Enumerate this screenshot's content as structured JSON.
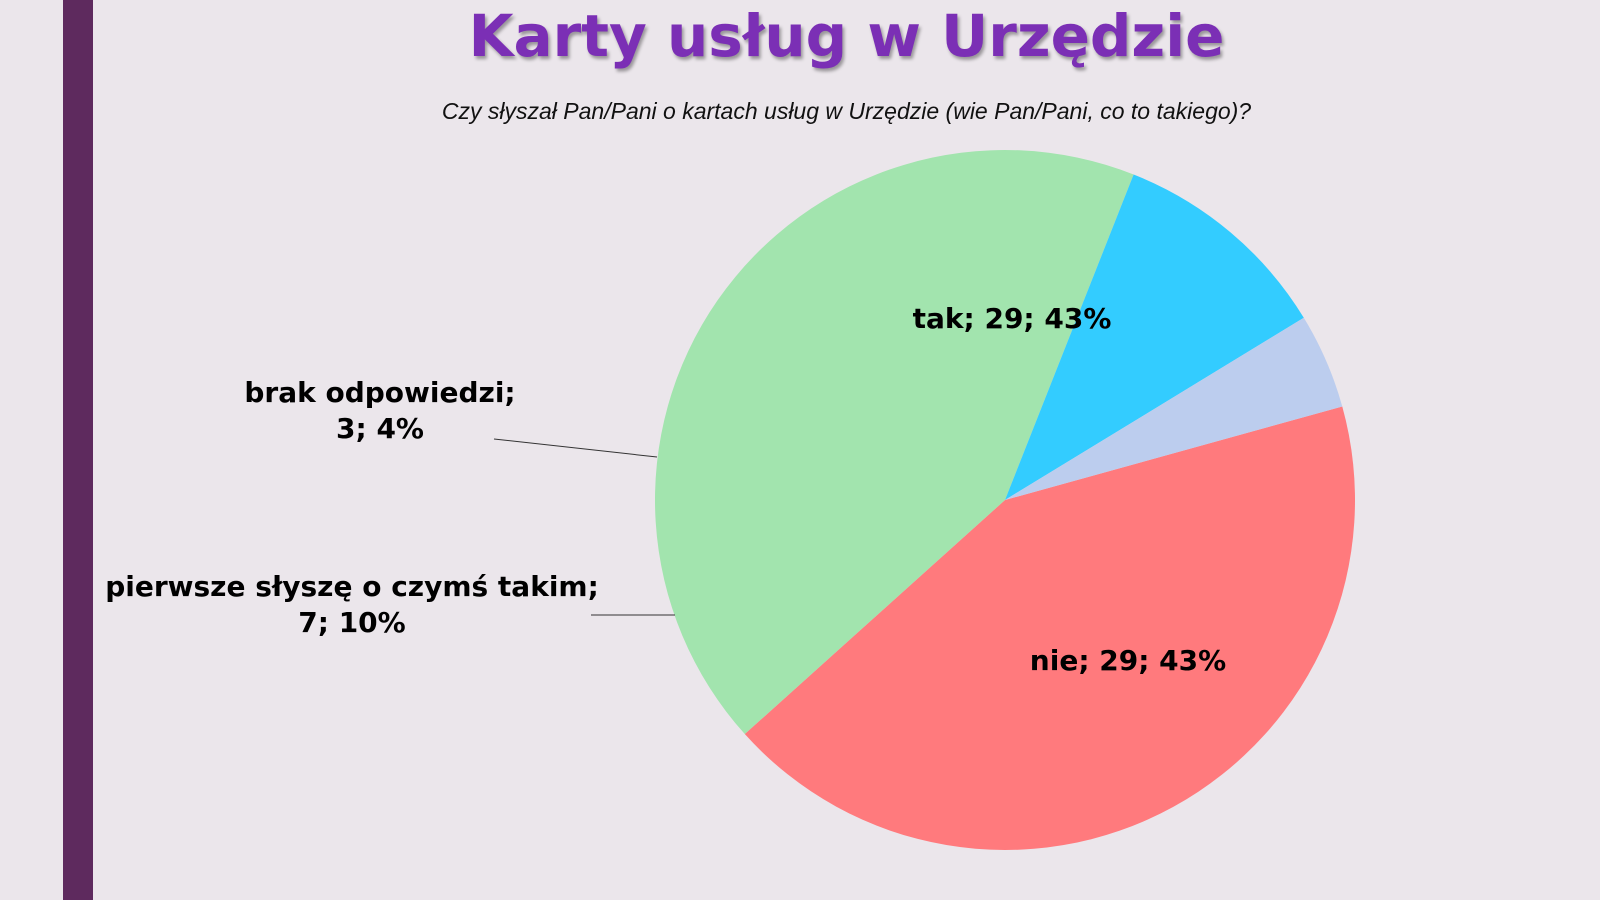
{
  "title": "Karty usług w Urzędzie",
  "subtitle": "Czy słyszał Pan/Pani o kartach usług w Urzędzie (wie Pan/Pani, co to takiego)?",
  "colors": {
    "sidebar": "#5e2a5e",
    "title": "#7b2fb5",
    "tak": "#ff7a7d",
    "nie": "#a2e4ae",
    "pierwsze": "#33ccff",
    "brak": "#bccdee"
  },
  "chart_data": {
    "type": "pie",
    "title": "",
    "slices": [
      {
        "label": "tak",
        "value": 29,
        "percent": 43,
        "color": "#ff7a7d",
        "label_lines": [
          "tak; 29; 43%"
        ]
      },
      {
        "label": "nie",
        "value": 29,
        "percent": 43,
        "color": "#a2e4ae",
        "label_lines": [
          "nie; 29; 43%"
        ]
      },
      {
        "label": "pierwsze słyszę o czymś takim",
        "value": 7,
        "percent": 10,
        "color": "#33ccff",
        "label_lines": [
          "pierwsze słyszę o czymś takim;",
          "7; 10%"
        ]
      },
      {
        "label": "brak odpowiedzi",
        "value": 3,
        "percent": 4,
        "color": "#bccdee",
        "label_lines": [
          "brak odpowiedzi;",
          "3; 4%"
        ]
      }
    ]
  }
}
